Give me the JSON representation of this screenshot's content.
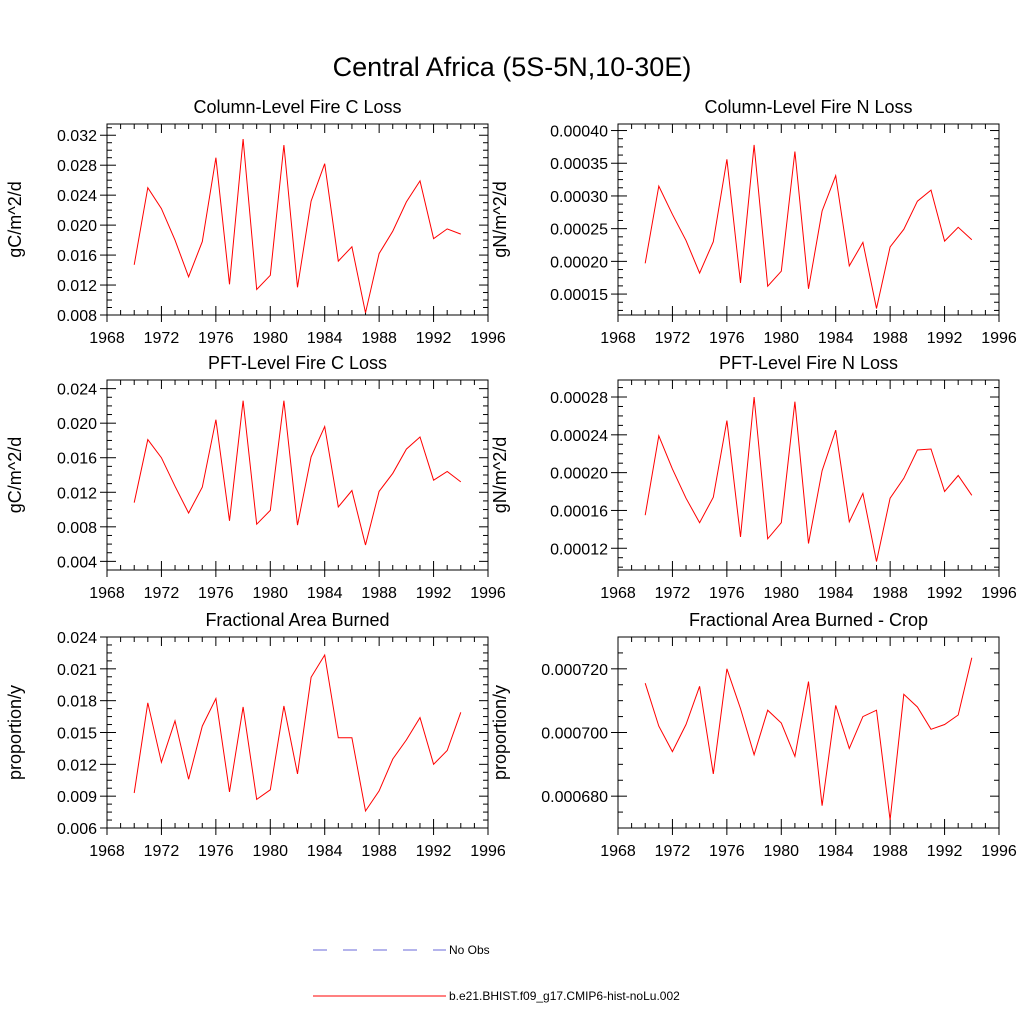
{
  "figure_title": "Central Africa (5S-5N,10-30E)",
  "legend": [
    {
      "label": "No Obs",
      "color": "#6a6ad8",
      "dash": "dashed"
    },
    {
      "label": "b.e21.BHIST.f09_g17.CMIP6-hist-noLu.002",
      "color": "#ff0000",
      "dash": "solid"
    }
  ],
  "chart_data": [
    {
      "type": "line",
      "title": "Column-Level Fire C Loss",
      "ylabel": "gC/m^2/d",
      "xlabel": "",
      "xlim": [
        1968,
        1996
      ],
      "ylim": [
        0.008,
        0.0335
      ],
      "xticks": [
        "1968",
        "1972",
        "1976",
        "1980",
        "1984",
        "1988",
        "1992",
        "1996"
      ],
      "yticks": [
        "0.008",
        "0.012",
        "0.016",
        "0.020",
        "0.024",
        "0.028",
        "0.032"
      ],
      "x": [
        1970,
        1971,
        1972,
        1973,
        1974,
        1975,
        1976,
        1977,
        1978,
        1979,
        1980,
        1981,
        1982,
        1983,
        1984,
        1985,
        1986,
        1987,
        1988,
        1989,
        1990,
        1991,
        1992,
        1993,
        1994
      ],
      "series": [
        {
          "values": [
            0.0147,
            0.025,
            0.0222,
            0.018,
            0.0131,
            0.0178,
            0.029,
            0.0121,
            0.0315,
            0.0114,
            0.0133,
            0.0307,
            0.0117,
            0.0232,
            0.0282,
            0.0152,
            0.0171,
            0.0083,
            0.0162,
            0.0192,
            0.0231,
            0.0259,
            0.0182,
            0.0195,
            0.0188
          ],
          "color": "#ff0000"
        }
      ]
    },
    {
      "type": "line",
      "title": "Column-Level Fire N Loss",
      "ylabel": "gN/m^2/d",
      "xlabel": "",
      "xlim": [
        1968,
        1996
      ],
      "ylim": [
        0.000118,
        0.00041
      ],
      "xticks": [
        "1968",
        "1972",
        "1976",
        "1980",
        "1984",
        "1988",
        "1992",
        "1996"
      ],
      "yticks": [
        "0.00015",
        "0.00020",
        "0.00025",
        "0.00030",
        "0.00035",
        "0.00040"
      ],
      "x": [
        1970,
        1971,
        1972,
        1973,
        1974,
        1975,
        1976,
        1977,
        1978,
        1979,
        1980,
        1981,
        1982,
        1983,
        1984,
        1985,
        1986,
        1987,
        1988,
        1989,
        1990,
        1991,
        1992,
        1993,
        1994
      ],
      "series": [
        {
          "values": [
            0.000197,
            0.000315,
            0.000272,
            0.000232,
            0.000182,
            0.00023,
            0.000356,
            0.000167,
            0.000378,
            0.000162,
            0.000185,
            0.000368,
            0.000158,
            0.000277,
            0.000331,
            0.000193,
            0.000229,
            0.000128,
            0.000222,
            0.000249,
            0.000292,
            0.000309,
            0.000231,
            0.000252,
            0.000233
          ],
          "color": "#ff0000"
        }
      ]
    },
    {
      "type": "line",
      "title": "PFT-Level Fire C Loss",
      "ylabel": "gC/m^2/d",
      "xlabel": "",
      "xlim": [
        1968,
        1996
      ],
      "ylim": [
        0.003,
        0.025
      ],
      "xticks": [
        "1968",
        "1972",
        "1976",
        "1980",
        "1984",
        "1988",
        "1992",
        "1996"
      ],
      "yticks": [
        "0.004",
        "0.008",
        "0.012",
        "0.016",
        "0.020",
        "0.024"
      ],
      "x": [
        1970,
        1971,
        1972,
        1973,
        1974,
        1975,
        1976,
        1977,
        1978,
        1979,
        1980,
        1981,
        1982,
        1983,
        1984,
        1985,
        1986,
        1987,
        1988,
        1989,
        1990,
        1991,
        1992,
        1993,
        1994
      ],
      "series": [
        {
          "values": [
            0.0108,
            0.0181,
            0.016,
            0.0127,
            0.0096,
            0.0126,
            0.0204,
            0.0087,
            0.0226,
            0.0083,
            0.0099,
            0.0226,
            0.0082,
            0.0161,
            0.0196,
            0.0103,
            0.0122,
            0.0059,
            0.0121,
            0.0142,
            0.017,
            0.0184,
            0.0134,
            0.0144,
            0.0132
          ],
          "color": "#ff0000"
        }
      ]
    },
    {
      "type": "line",
      "title": "PFT-Level Fire N Loss",
      "ylabel": "gN/m^2/d",
      "xlabel": "",
      "xlim": [
        1968,
        1996
      ],
      "ylim": [
        9.7e-05,
        0.000298
      ],
      "xticks": [
        "1968",
        "1972",
        "1976",
        "1980",
        "1984",
        "1988",
        "1992",
        "1996"
      ],
      "yticks": [
        "0.00012",
        "0.00016",
        "0.00020",
        "0.00024",
        "0.00028"
      ],
      "x": [
        1970,
        1971,
        1972,
        1973,
        1974,
        1975,
        1976,
        1977,
        1978,
        1979,
        1980,
        1981,
        1982,
        1983,
        1984,
        1985,
        1986,
        1987,
        1988,
        1989,
        1990,
        1991,
        1992,
        1993,
        1994
      ],
      "series": [
        {
          "values": [
            0.000155,
            0.000239,
            0.000204,
            0.000173,
            0.000147,
            0.000174,
            0.000255,
            0.000132,
            0.00028,
            0.00013,
            0.000147,
            0.000275,
            0.000125,
            0.000202,
            0.000245,
            0.000148,
            0.000178,
            0.000106,
            0.000173,
            0.000194,
            0.000224,
            0.000225,
            0.00018,
            0.000197,
            0.000176
          ],
          "color": "#ff0000"
        }
      ]
    },
    {
      "type": "line",
      "title": "Fractional Area Burned",
      "ylabel": "proportion/y",
      "xlabel": "",
      "xlim": [
        1968,
        1996
      ],
      "ylim": [
        0.006,
        0.024
      ],
      "xticks": [
        "1968",
        "1972",
        "1976",
        "1980",
        "1984",
        "1988",
        "1992",
        "1996"
      ],
      "yticks": [
        "0.006",
        "0.009",
        "0.012",
        "0.015",
        "0.018",
        "0.021",
        "0.024"
      ],
      "x": [
        1970,
        1971,
        1972,
        1973,
        1974,
        1975,
        1976,
        1977,
        1978,
        1979,
        1980,
        1981,
        1982,
        1983,
        1984,
        1985,
        1986,
        1987,
        1988,
        1989,
        1990,
        1991,
        1992,
        1993,
        1994
      ],
      "series": [
        {
          "values": [
            0.0093,
            0.0178,
            0.0122,
            0.0161,
            0.0106,
            0.0156,
            0.0182,
            0.0094,
            0.0174,
            0.0087,
            0.0096,
            0.0175,
            0.0111,
            0.0202,
            0.0223,
            0.0145,
            0.0145,
            0.0076,
            0.0095,
            0.0125,
            0.0143,
            0.0164,
            0.012,
            0.0133,
            0.0169
          ],
          "color": "#ff0000"
        }
      ]
    },
    {
      "type": "line",
      "title": "Fractional Area Burned - Crop",
      "ylabel": "proportion/y",
      "xlabel": "",
      "xlim": [
        1968,
        1996
      ],
      "ylim": [
        0.00067,
        0.00073
      ],
      "xticks": [
        "1968",
        "1972",
        "1976",
        "1980",
        "1984",
        "1988",
        "1992",
        "1996"
      ],
      "yticks": [
        "0.000680",
        "0.000700",
        "0.000720"
      ],
      "x": [
        1970,
        1971,
        1972,
        1973,
        1974,
        1975,
        1976,
        1977,
        1978,
        1979,
        1980,
        1981,
        1982,
        1983,
        1984,
        1985,
        1986,
        1987,
        1988,
        1989,
        1990,
        1991,
        1992,
        1993,
        1994
      ],
      "series": [
        {
          "values": [
            0.0007155,
            0.000702,
            0.000694,
            0.0007025,
            0.0007145,
            0.000687,
            0.00072,
            0.0007075,
            0.000693,
            0.000707,
            0.000703,
            0.0006925,
            0.000716,
            0.000677,
            0.0007085,
            0.000695,
            0.000705,
            0.000707,
            0.0006725,
            0.000712,
            0.000708,
            0.000701,
            0.0007025,
            0.0007055,
            0.0007235
          ],
          "color": "#ff0000"
        }
      ]
    }
  ]
}
